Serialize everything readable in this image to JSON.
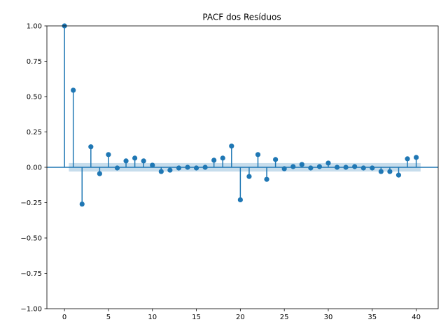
{
  "chart_data": {
    "type": "stem",
    "title": "PACF dos Resíduos",
    "xlabel": "",
    "ylabel": "",
    "xlim": [
      -2,
      42.5
    ],
    "ylim": [
      -1.0,
      1.0
    ],
    "x_ticks": [
      0,
      5,
      10,
      15,
      20,
      25,
      30,
      35,
      40
    ],
    "y_ticks": [
      -1.0,
      -0.75,
      -0.5,
      -0.25,
      0.0,
      0.25,
      0.5,
      0.75,
      1.0
    ],
    "x_tick_labels": [
      "0",
      "5",
      "10",
      "15",
      "20",
      "25",
      "30",
      "35",
      "40"
    ],
    "y_tick_labels": [
      "−1.00",
      "−0.75",
      "−0.50",
      "−0.25",
      "0.00",
      "0.25",
      "0.50",
      "0.75",
      "1.00"
    ],
    "grid": false,
    "colors": {
      "stem": "#1f77b4",
      "band": "#1f77b4"
    },
    "confidence_band": [
      -0.03,
      0.03
    ],
    "lags": [
      0,
      1,
      2,
      3,
      4,
      5,
      6,
      7,
      8,
      9,
      10,
      11,
      12,
      13,
      14,
      15,
      16,
      17,
      18,
      19,
      20,
      21,
      22,
      23,
      24,
      25,
      26,
      27,
      28,
      29,
      30,
      31,
      32,
      33,
      34,
      35,
      36,
      37,
      38,
      39,
      40
    ],
    "values": [
      1.0,
      0.545,
      -0.26,
      0.145,
      -0.045,
      0.09,
      -0.005,
      0.045,
      0.065,
      0.045,
      0.015,
      -0.03,
      -0.02,
      -0.005,
      0.0,
      -0.005,
      0.0,
      0.05,
      0.065,
      0.15,
      -0.23,
      -0.065,
      0.09,
      -0.085,
      0.055,
      -0.01,
      0.005,
      0.02,
      -0.005,
      0.005,
      0.03,
      0.0,
      0.0,
      0.005,
      -0.005,
      -0.005,
      -0.03,
      -0.03,
      -0.055,
      0.06,
      0.07
    ]
  }
}
